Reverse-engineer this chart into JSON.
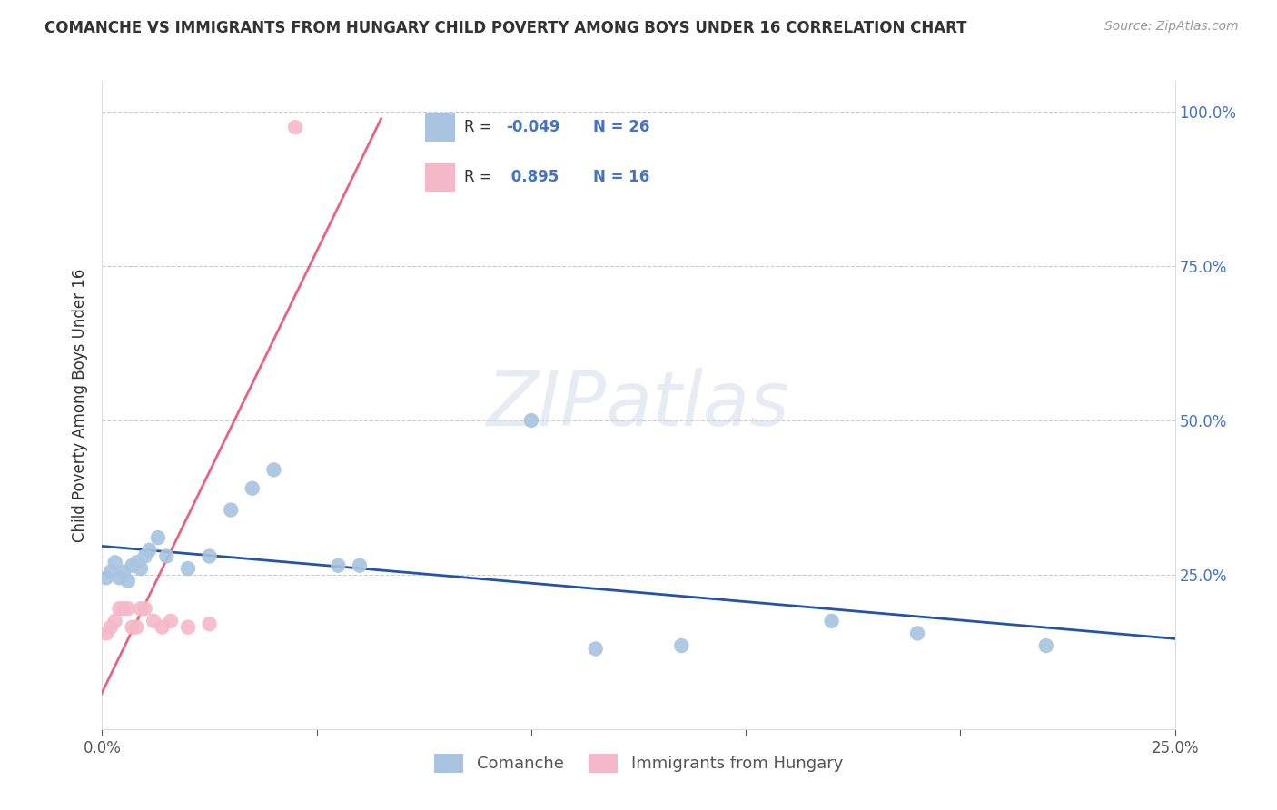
{
  "title": "COMANCHE VS IMMIGRANTS FROM HUNGARY CHILD POVERTY AMONG BOYS UNDER 16 CORRELATION CHART",
  "source": "Source: ZipAtlas.com",
  "ylabel": "Child Poverty Among Boys Under 16",
  "xlim": [
    0.0,
    0.25
  ],
  "ylim": [
    0.0,
    1.05
  ],
  "comanche_R": -0.049,
  "comanche_N": 26,
  "hungary_R": 0.895,
  "hungary_N": 16,
  "comanche_color": "#a8c4e0",
  "hungary_color": "#f4b8c8",
  "comanche_line_color": "#2255aa",
  "hungary_line_color": "#e8637d",
  "comanche_x": [
    0.001,
    0.002,
    0.003,
    0.004,
    0.005,
    0.006,
    0.007,
    0.008,
    0.009,
    0.01,
    0.011,
    0.013,
    0.015,
    0.02,
    0.025,
    0.03,
    0.035,
    0.04,
    0.055,
    0.06,
    0.1,
    0.115,
    0.135,
    0.17,
    0.19,
    0.22
  ],
  "comanche_y": [
    0.245,
    0.255,
    0.27,
    0.245,
    0.255,
    0.24,
    0.265,
    0.27,
    0.26,
    0.28,
    0.29,
    0.31,
    0.28,
    0.26,
    0.28,
    0.355,
    0.39,
    0.42,
    0.265,
    0.265,
    0.5,
    0.13,
    0.135,
    0.175,
    0.155,
    0.135
  ],
  "hungary_x": [
    0.001,
    0.002,
    0.003,
    0.004,
    0.005,
    0.006,
    0.007,
    0.008,
    0.009,
    0.01,
    0.012,
    0.014,
    0.016,
    0.02,
    0.025,
    0.045
  ],
  "hungary_y": [
    0.155,
    0.165,
    0.175,
    0.195,
    0.195,
    0.195,
    0.165,
    0.165,
    0.195,
    0.195,
    0.175,
    0.165,
    0.175,
    0.165,
    0.17,
    0.975
  ],
  "watermark_text": "ZIPatlas",
  "grid_color": "#cccccc",
  "grid_style": "--",
  "tick_label_color": "#4472c4",
  "title_color": "#333333",
  "source_color": "#999999",
  "ylabel_color": "#333333"
}
